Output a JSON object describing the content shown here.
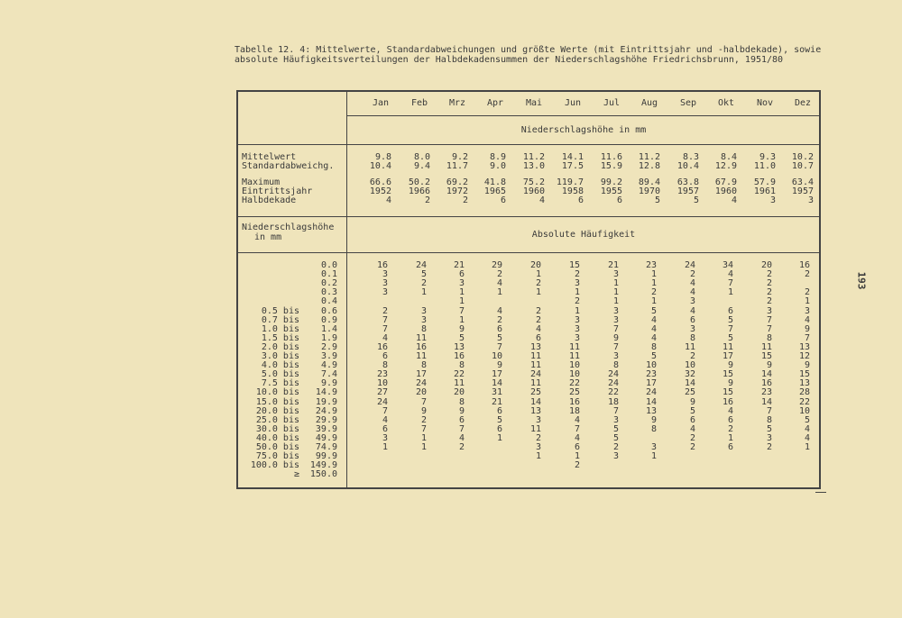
{
  "caption": "Tabelle 12. 4: Mittelwerte, Standardabweichungen und größte Werte (mit Eintrittsjahr und -halbdekade), sowie absolute Häufigkeitsverteilungen der Halbdekadensummen der Niederschlagshöhe Friedrichsbrunn, 1951/80",
  "months": [
    "Jan",
    "Feb",
    "Mrz",
    "Apr",
    "Mai",
    "Jun",
    "Jul",
    "Aug",
    "Sep",
    "Okt",
    "Nov",
    "Dez"
  ],
  "unit_header": "Niederschlagshöhe in mm",
  "stats": [
    {
      "label": "Mittelwert",
      "values": [
        "9.8",
        "8.0",
        "9.2",
        "8.9",
        "11.2",
        "14.1",
        "11.6",
        "11.2",
        "8.3",
        "8.4",
        "9.3",
        "10.2"
      ]
    },
    {
      "label": "Standardabweichg.",
      "values": [
        "10.4",
        "9.4",
        "11.7",
        "9.0",
        "13.0",
        "17.5",
        "15.9",
        "12.8",
        "10.4",
        "12.9",
        "11.0",
        "10.7"
      ]
    },
    {
      "label": "Maximum",
      "values": [
        "66.6",
        "50.2",
        "69.2",
        "41.8",
        "75.2",
        "119.7",
        "99.2",
        "89.4",
        "63.8",
        "67.9",
        "57.9",
        "63.4"
      ]
    },
    {
      "label": "Eintrittsjahr",
      "values": [
        "1952",
        "1966",
        "1972",
        "1965",
        "1960",
        "1958",
        "1955",
        "1970",
        "1957",
        "1960",
        "1961",
        "1957"
      ]
    },
    {
      "label": "Halbdekade",
      "values": [
        "4",
        "2",
        "2",
        "6",
        "4",
        "6",
        "6",
        "5",
        "5",
        "4",
        "3",
        "3"
      ]
    }
  ],
  "freq_header_left_line1": "Niederschlagshöhe",
  "freq_header_left_line2": "in mm",
  "freq_header": "Absolute Häufigkeit",
  "freq_rows": [
    {
      "from": "",
      "to": "0.0",
      "values": [
        "16",
        "24",
        "21",
        "29",
        "20",
        "15",
        "21",
        "23",
        "24",
        "34",
        "20",
        "16"
      ]
    },
    {
      "from": "",
      "to": "0.1",
      "values": [
        "3",
        "5",
        "6",
        "2",
        "1",
        "2",
        "3",
        "1",
        "2",
        "4",
        "2",
        "2"
      ]
    },
    {
      "from": "",
      "to": "0.2",
      "values": [
        "3",
        "2",
        "3",
        "4",
        "2",
        "3",
        "1",
        "1",
        "4",
        "7",
        "2",
        ""
      ]
    },
    {
      "from": "",
      "to": "0.3",
      "values": [
        "3",
        "1",
        "1",
        "1",
        "1",
        "1",
        "1",
        "2",
        "4",
        "1",
        "2",
        "2"
      ]
    },
    {
      "from": "",
      "to": "0.4",
      "values": [
        "",
        "",
        "1",
        "",
        "",
        "2",
        "1",
        "1",
        "3",
        "",
        "2",
        "1"
      ]
    },
    {
      "from": "0.5 bis",
      "to": "0.6",
      "values": [
        "2",
        "3",
        "7",
        "4",
        "2",
        "1",
        "3",
        "5",
        "4",
        "6",
        "3",
        "3"
      ]
    },
    {
      "from": "0.7 bis",
      "to": "0.9",
      "values": [
        "7",
        "3",
        "1",
        "2",
        "2",
        "3",
        "3",
        "4",
        "6",
        "5",
        "7",
        "4"
      ]
    },
    {
      "from": "1.0 bis",
      "to": "1.4",
      "values": [
        "7",
        "8",
        "9",
        "6",
        "4",
        "3",
        "7",
        "4",
        "3",
        "7",
        "7",
        "9"
      ]
    },
    {
      "from": "1.5 bis",
      "to": "1.9",
      "values": [
        "4",
        "11",
        "5",
        "5",
        "6",
        "3",
        "9",
        "4",
        "8",
        "5",
        "8",
        "7"
      ]
    },
    {
      "from": "2.0 bis",
      "to": "2.9",
      "values": [
        "16",
        "16",
        "13",
        "7",
        "13",
        "11",
        "7",
        "8",
        "11",
        "11",
        "11",
        "13"
      ]
    },
    {
      "from": "3.0 bis",
      "to": "3.9",
      "values": [
        "6",
        "11",
        "16",
        "10",
        "11",
        "11",
        "3",
        "5",
        "2",
        "17",
        "15",
        "12"
      ]
    },
    {
      "from": "4.0 bis",
      "to": "4.9",
      "values": [
        "8",
        "8",
        "8",
        "9",
        "11",
        "10",
        "8",
        "10",
        "10",
        "9",
        "9",
        "9"
      ]
    },
    {
      "from": "5.0 bis",
      "to": "7.4",
      "values": [
        "23",
        "17",
        "22",
        "17",
        "24",
        "10",
        "24",
        "23",
        "32",
        "15",
        "14",
        "15"
      ]
    },
    {
      "from": "7.5 bis",
      "to": "9.9",
      "values": [
        "10",
        "24",
        "11",
        "14",
        "11",
        "22",
        "24",
        "17",
        "14",
        "9",
        "16",
        "13"
      ]
    },
    {
      "from": "10.0 bis",
      "to": "14.9",
      "values": [
        "27",
        "20",
        "20",
        "31",
        "25",
        "25",
        "22",
        "24",
        "25",
        "15",
        "23",
        "28"
      ]
    },
    {
      "from": "15.0 bis",
      "to": "19.9",
      "values": [
        "24",
        "7",
        "8",
        "21",
        "14",
        "16",
        "18",
        "14",
        "9",
        "16",
        "14",
        "22"
      ]
    },
    {
      "from": "20.0 bis",
      "to": "24.9",
      "values": [
        "7",
        "9",
        "9",
        "6",
        "13",
        "18",
        "7",
        "13",
        "5",
        "4",
        "7",
        "10"
      ]
    },
    {
      "from": "25.0 bis",
      "to": "29.9",
      "values": [
        "4",
        "2",
        "6",
        "5",
        "3",
        "4",
        "3",
        "9",
        "6",
        "6",
        "8",
        "5"
      ]
    },
    {
      "from": "30.0 bis",
      "to": "39.9",
      "values": [
        "6",
        "7",
        "7",
        "6",
        "11",
        "7",
        "5",
        "8",
        "4",
        "2",
        "5",
        "4"
      ]
    },
    {
      "from": "40.0 bis",
      "to": "49.9",
      "values": [
        "3",
        "1",
        "4",
        "1",
        "2",
        "4",
        "5",
        "",
        "2",
        "1",
        "3",
        "4"
      ]
    },
    {
      "from": "50.0 bis",
      "to": "74.9",
      "values": [
        "1",
        "1",
        "2",
        "",
        "3",
        "6",
        "2",
        "3",
        "2",
        "6",
        "2",
        "1"
      ]
    },
    {
      "from": "75.0 bis",
      "to": "99.9",
      "values": [
        "",
        "",
        "",
        "",
        "1",
        "1",
        "3",
        "1",
        "",
        "",
        "",
        ""
      ]
    },
    {
      "from": "100.0 bis",
      "to": "149.9",
      "values": [
        "",
        "",
        "",
        "",
        "",
        "2",
        "",
        "",
        "",
        "",
        "",
        ""
      ]
    },
    {
      "from": "≥",
      "to": "150.0",
      "values": [
        "",
        "",
        "",
        "",
        "",
        "",
        "",
        "",
        "",
        "",
        "",
        ""
      ]
    }
  ],
  "page_number": "193"
}
